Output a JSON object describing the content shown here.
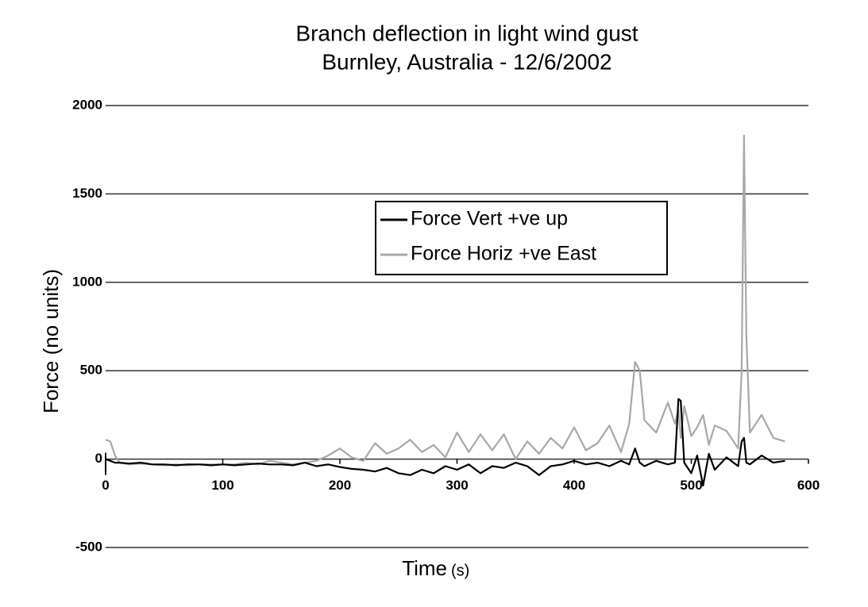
{
  "chart_data": {
    "type": "line",
    "title": "Branch deflection in light wind gust",
    "subtitle": "Burnley, Australia - 12/6/2002",
    "x_label": "Time",
    "x_label_unit": "(s)",
    "y_label": "Force (no units)",
    "xlim": [
      0,
      600
    ],
    "xticks": [
      0,
      100,
      200,
      300,
      400,
      500,
      600
    ],
    "ylim": [
      -500,
      2000
    ],
    "yticks": [
      -500,
      0,
      500,
      1000,
      1500,
      2000
    ],
    "grid": true,
    "legend": "upper-center",
    "x": [
      0,
      4,
      8,
      12,
      20,
      30,
      40,
      50,
      60,
      70,
      80,
      90,
      100,
      110,
      120,
      130,
      140,
      150,
      160,
      170,
      180,
      190,
      200,
      210,
      220,
      230,
      240,
      250,
      260,
      270,
      280,
      290,
      300,
      310,
      320,
      330,
      340,
      350,
      360,
      370,
      380,
      390,
      400,
      410,
      420,
      430,
      440,
      447,
      452,
      456,
      460,
      470,
      480,
      486,
      489,
      491,
      494,
      500,
      505,
      510,
      515,
      520,
      530,
      540,
      543,
      545,
      547,
      550,
      560,
      570,
      580
    ],
    "series": [
      {
        "name": "Force Vert +ve up",
        "color": "#000000",
        "values": [
          0,
          -10,
          -20,
          -20,
          -25,
          -20,
          -30,
          -30,
          -35,
          -30,
          -30,
          -35,
          -30,
          -35,
          -30,
          -25,
          -30,
          -30,
          -35,
          -20,
          -40,
          -30,
          -45,
          -55,
          -60,
          -70,
          -50,
          -80,
          -90,
          -60,
          -80,
          -40,
          -60,
          -30,
          -80,
          -40,
          -50,
          -20,
          -40,
          -90,
          -40,
          -30,
          -10,
          -30,
          -20,
          -40,
          -10,
          -30,
          60,
          -20,
          -40,
          -10,
          -30,
          -20,
          340,
          330,
          -20,
          -80,
          20,
          -150,
          30,
          -60,
          10,
          -40,
          100,
          120,
          -20,
          -30,
          20,
          -20,
          -10
        ]
      },
      {
        "name": "Force Horiz +ve East",
        "color": "#a8a8a8",
        "values": [
          110,
          100,
          20,
          -20,
          -30,
          -25,
          -30,
          -35,
          -30,
          -35,
          -30,
          -30,
          -30,
          -30,
          -20,
          -30,
          -10,
          -20,
          -30,
          -20,
          -10,
          20,
          60,
          10,
          -10,
          90,
          30,
          60,
          110,
          40,
          80,
          10,
          150,
          40,
          140,
          50,
          140,
          0,
          100,
          30,
          120,
          60,
          180,
          50,
          90,
          190,
          40,
          200,
          550,
          500,
          220,
          150,
          320,
          200,
          280,
          120,
          300,
          130,
          180,
          250,
          80,
          190,
          160,
          60,
          500,
          1830,
          700,
          150,
          250,
          120,
          100
        ]
      }
    ]
  }
}
